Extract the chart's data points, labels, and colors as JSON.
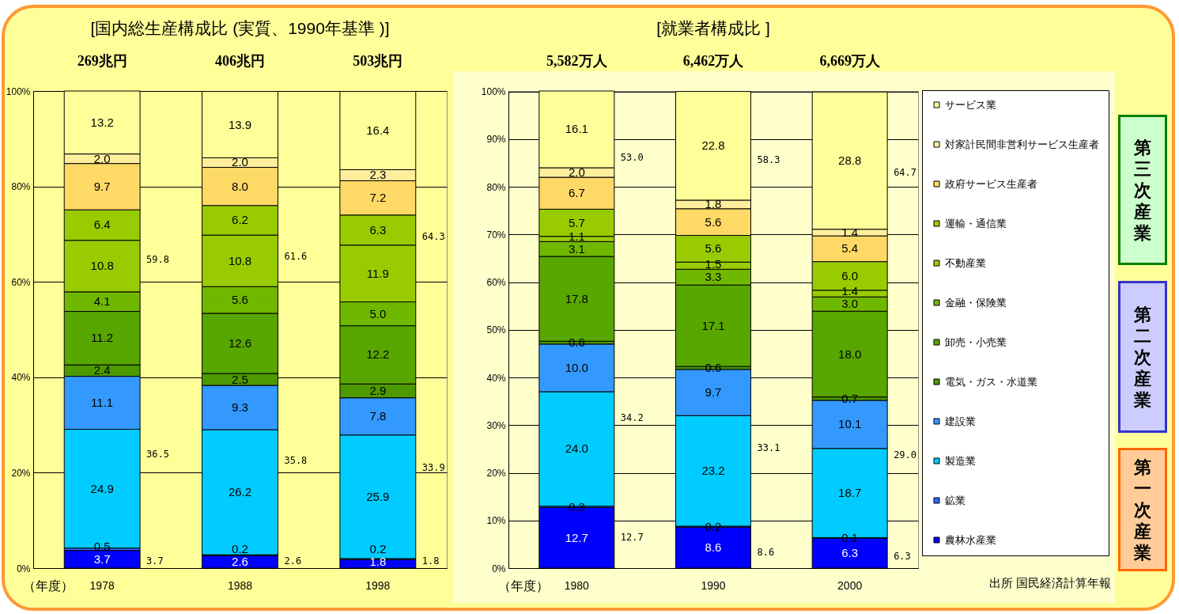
{
  "chart_data": [
    {
      "type": "bar",
      "title": "[国内総生産構成比 (実質、1990年基準 )]",
      "xlabel": "（年度）",
      "categories": [
        "1978",
        "1988",
        "1998"
      ],
      "stacked": true,
      "series": [
        {
          "color": "#0000ff",
          "values": [
            3.7,
            2.6,
            1.8
          ],
          "value_labels": [
            "3.7",
            "2.6",
            "1.8"
          ]
        },
        {
          "color": "#3366ff",
          "values": [
            0.5,
            0.2,
            0.2
          ],
          "value_labels": [
            "0.5",
            "0.2",
            "0.2"
          ]
        },
        {
          "color": "#00ccff",
          "values": [
            24.9,
            26.2,
            25.9
          ],
          "value_labels": [
            "24.9",
            "26.2",
            "25.9"
          ]
        },
        {
          "color": "#3399ff",
          "values": [
            11.1,
            9.3,
            7.8
          ],
          "value_labels": [
            "11.1",
            "9.3",
            "7.8"
          ]
        },
        {
          "color": "#4d9900",
          "values": [
            2.4,
            2.5,
            2.9
          ],
          "value_labels": [
            "2.4",
            "2.5",
            "2.9"
          ]
        },
        {
          "color": "#58a600",
          "values": [
            11.2,
            12.6,
            12.2
          ],
          "value_labels": [
            "11.2",
            "12.6",
            "12.2"
          ]
        },
        {
          "color": "#70b800",
          "values": [
            4.1,
            5.6,
            5.0
          ],
          "value_labels": [
            "4.1",
            "5.6",
            "5.0"
          ]
        },
        {
          "color": "#99cc00",
          "values": [
            10.8,
            10.8,
            11.9
          ],
          "value_labels": [
            "10.8",
            "10.8",
            "11.9"
          ]
        },
        {
          "color": "#99cc00",
          "values": [
            6.4,
            6.2,
            6.3
          ],
          "value_labels": [
            "6.4",
            "6.2",
            "6.3"
          ]
        },
        {
          "color": "#ffd966",
          "values": [
            9.7,
            8.0,
            7.2
          ],
          "value_labels": [
            "9.7",
            "8.0",
            "7.2"
          ]
        },
        {
          "color": "#ffef9c",
          "values": [
            2.0,
            2.0,
            2.3
          ],
          "value_labels": [
            "2.0",
            "2.0",
            "2.3"
          ]
        },
        {
          "color": "#ffff99",
          "values": [
            13.2,
            13.9,
            16.4
          ],
          "value_labels": [
            "13.2",
            "13.9",
            "16.4"
          ]
        }
      ],
      "ylim": [
        0,
        100
      ],
      "yticks": [
        {
          "value": 0,
          "label": "0%"
        },
        {
          "value": 20,
          "label": "20%"
        },
        {
          "value": 40,
          "label": "40%"
        },
        {
          "value": 60,
          "label": "60%"
        },
        {
          "value": 80,
          "label": "80%"
        },
        {
          "value": 100,
          "label": "100%"
        }
      ],
      "grid": "y",
      "annotations": [
        "269兆円",
        "406兆円",
        "503兆円",
        "59.8",
        "36.5",
        "3.7",
        "61.6",
        "35.8",
        "2.6",
        "64.3",
        "33.9",
        "1.8"
      ]
    },
    {
      "type": "bar",
      "title": "[就業者構成比 ]",
      "xlabel": "（年度）",
      "categories": [
        "1980",
        "1990",
        "2000"
      ],
      "stacked": true,
      "series": [
        {
          "name": "農林水産業",
          "color": "#0000ff",
          "values": [
            12.7,
            8.6,
            6.3
          ],
          "value_labels": [
            "12.7",
            "8.6",
            "6.3"
          ]
        },
        {
          "name": "鉱業",
          "color": "#3366ff",
          "values": [
            0.3,
            0.2,
            0.1
          ],
          "value_labels": [
            "0.3",
            "0.2",
            "0.1"
          ]
        },
        {
          "name": "製造業",
          "color": "#00ccff",
          "values": [
            24.0,
            23.2,
            18.7
          ],
          "value_labels": [
            "24.0",
            "23.2",
            "18.7"
          ]
        },
        {
          "name": "建設業",
          "color": "#3399ff",
          "values": [
            10.0,
            9.7,
            10.1
          ],
          "value_labels": [
            "10.0",
            "9.7",
            "10.1"
          ]
        },
        {
          "name": "電気・ガス・水道業",
          "color": "#4d9900",
          "values": [
            0.6,
            0.6,
            0.7
          ],
          "value_labels": [
            "0.6",
            "0.6",
            "0.7"
          ]
        },
        {
          "name": "卸売・小売業",
          "color": "#58a600",
          "values": [
            17.8,
            17.1,
            18.0
          ],
          "value_labels": [
            "17.8",
            "17.1",
            "18.0"
          ]
        },
        {
          "name": "金融・保険業",
          "color": "#70b800",
          "values": [
            3.1,
            3.3,
            3.0
          ],
          "value_labels": [
            "3.1",
            "3.3",
            "3.0"
          ]
        },
        {
          "name": "不動産業",
          "color": "#99cc00",
          "values": [
            1.1,
            1.5,
            1.4
          ],
          "value_labels": [
            "1.1",
            "1.5",
            "1.4"
          ]
        },
        {
          "name": "運輸・通信業",
          "color": "#99cc00",
          "values": [
            5.7,
            5.6,
            6.0
          ],
          "value_labels": [
            "5.7",
            "5.6",
            "6.0"
          ]
        },
        {
          "name": "政府サービス生産者",
          "color": "#ffd966",
          "values": [
            6.7,
            5.6,
            5.4
          ],
          "value_labels": [
            "6.7",
            "5.6",
            "5.4"
          ]
        },
        {
          "name": "対家計民間非営利サービス生産者",
          "color": "#ffef9c",
          "values": [
            2.0,
            1.8,
            1.4
          ],
          "value_labels": [
            "2.0",
            "1.8",
            "1.4"
          ]
        },
        {
          "name": "サービス業",
          "color": "#ffff99",
          "values": [
            16.1,
            22.8,
            28.8
          ],
          "value_labels": [
            "16.1",
            "22.8",
            "28.8"
          ]
        }
      ],
      "ylim": [
        0,
        100.1
      ],
      "yticks": [
        {
          "value": 0,
          "label": "0%"
        },
        {
          "value": 10,
          "label": "10%"
        },
        {
          "value": 20,
          "label": "20%"
        },
        {
          "value": 30,
          "label": "30%"
        },
        {
          "value": 40,
          "label": "40%"
        },
        {
          "value": 50,
          "label": "50%"
        },
        {
          "value": 60,
          "label": "60%"
        },
        {
          "value": 70,
          "label": "70%"
        },
        {
          "value": 80,
          "label": "80%"
        },
        {
          "value": 90,
          "label": "90%"
        },
        {
          "value": 100,
          "label": "100%"
        }
      ],
      "grid": "y",
      "legend": "right",
      "annotations": [
        "5,582万人",
        "6,462万人",
        "6,669万人",
        "53.0",
        "34.2",
        "12.7",
        "58.3",
        "33.1",
        "8.6",
        "64.7",
        "29.0",
        "6.3",
        "第三次産業",
        "第二次産業",
        "第一次産業",
        "出所 国民経済計算年報"
      ]
    }
  ]
}
